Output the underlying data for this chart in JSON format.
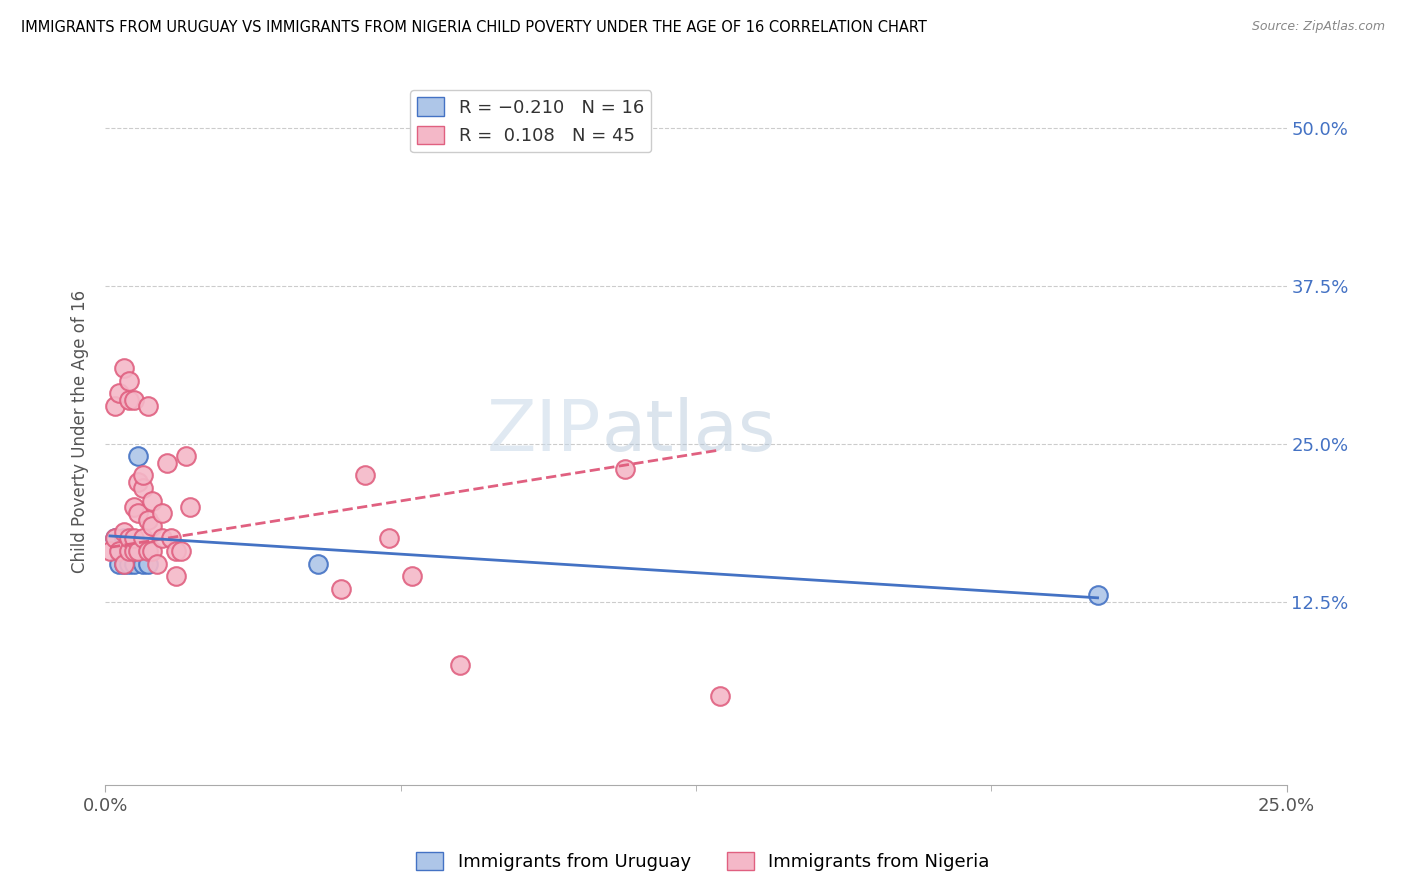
{
  "title": "IMMIGRANTS FROM URUGUAY VS IMMIGRANTS FROM NIGERIA CHILD POVERTY UNDER THE AGE OF 16 CORRELATION CHART",
  "source": "Source: ZipAtlas.com",
  "ylabel": "Child Poverty Under the Age of 16",
  "xlim": [
    0.0,
    0.25
  ],
  "ylim": [
    -0.02,
    0.54
  ],
  "ytick_positions": [
    0.125,
    0.25,
    0.375,
    0.5
  ],
  "ytick_labels": [
    "12.5%",
    "25.0%",
    "37.5%",
    "50.0%"
  ],
  "r_uruguay": -0.21,
  "n_uruguay": 16,
  "r_nigeria": 0.108,
  "n_nigeria": 45,
  "color_uruguay": "#aec6e8",
  "color_nigeria": "#f4b8c8",
  "line_color_uruguay": "#4472c4",
  "line_color_nigeria": "#e06080",
  "legend_label_uruguay": "Immigrants from Uruguay",
  "legend_label_nigeria": "Immigrants from Nigeria",
  "uruguay_x": [
    0.002,
    0.003,
    0.003,
    0.004,
    0.004,
    0.004,
    0.005,
    0.005,
    0.005,
    0.006,
    0.006,
    0.007,
    0.008,
    0.009,
    0.045,
    0.21
  ],
  "uruguay_y": [
    0.175,
    0.165,
    0.155,
    0.175,
    0.165,
    0.155,
    0.17,
    0.16,
    0.155,
    0.155,
    0.165,
    0.24,
    0.155,
    0.155,
    0.155,
    0.13
  ],
  "nigeria_x": [
    0.001,
    0.002,
    0.002,
    0.003,
    0.003,
    0.004,
    0.004,
    0.004,
    0.005,
    0.005,
    0.005,
    0.005,
    0.006,
    0.006,
    0.006,
    0.006,
    0.007,
    0.007,
    0.007,
    0.008,
    0.008,
    0.008,
    0.009,
    0.009,
    0.009,
    0.01,
    0.01,
    0.01,
    0.011,
    0.012,
    0.012,
    0.013,
    0.014,
    0.015,
    0.015,
    0.016,
    0.017,
    0.018,
    0.05,
    0.055,
    0.06,
    0.065,
    0.075,
    0.11,
    0.13
  ],
  "nigeria_y": [
    0.165,
    0.175,
    0.28,
    0.165,
    0.29,
    0.155,
    0.18,
    0.31,
    0.165,
    0.285,
    0.3,
    0.175,
    0.165,
    0.2,
    0.285,
    0.175,
    0.195,
    0.22,
    0.165,
    0.175,
    0.215,
    0.225,
    0.165,
    0.19,
    0.28,
    0.165,
    0.185,
    0.205,
    0.155,
    0.175,
    0.195,
    0.235,
    0.175,
    0.165,
    0.145,
    0.165,
    0.24,
    0.2,
    0.135,
    0.225,
    0.175,
    0.145,
    0.075,
    0.23,
    0.05
  ],
  "nigeria_line_x": [
    0.001,
    0.13
  ],
  "nigeria_line_y": [
    0.168,
    0.245
  ],
  "uruguay_line_x": [
    0.001,
    0.21
  ],
  "uruguay_line_y": [
    0.177,
    0.128
  ]
}
